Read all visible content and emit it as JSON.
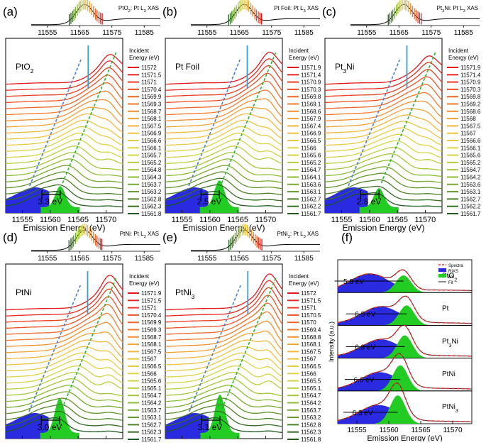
{
  "colors": {
    "top": "#e8141c",
    "bottom": "#1e5a1e",
    "ddv": "#2a2ae0",
    "es": "#22cc22",
    "loss_line": "#4a7fd1",
    "elastic_line": "#2fa0d8",
    "es_line": "#2db42d",
    "spectra": "#e03030",
    "fit": "#1a1a1a"
  },
  "chart_data": [
    {
      "type": "line",
      "panel": "(a)",
      "sample": "PtO2",
      "sample_label": "PtO₂",
      "xas_title": "PtO₂: Pt L₃ XAS",
      "xas_ticks": [
        "11555",
        "11565",
        "11575",
        "11585"
      ],
      "rixs_ticks": [
        "11555",
        "11560",
        "11565",
        "11570"
      ],
      "xlim": [
        11552,
        11573
      ],
      "xlabel": "Emission Energy (eV)",
      "legend_title": [
        "Incident",
        "Energy (eV)"
      ],
      "incident_energies": [
        "11572",
        "11571.5",
        "11571",
        "11570.4",
        "11569.9",
        "11569.3",
        "11568.7",
        "11568.1",
        "11567.5",
        "11566.9",
        "11566.6",
        "11566.1",
        "11565.7",
        "11565.2",
        "11564.8",
        "11564.3",
        "11563.7",
        "11563.2",
        "11562.8",
        "11562.3",
        "11561.8"
      ],
      "loss_annotation": "3.3 eV"
    },
    {
      "type": "line",
      "panel": "(b)",
      "sample": "Pt Foil",
      "sample_label": "Pt Foil",
      "xas_title": "Pt Foil: Pt L₃ XAS",
      "xas_ticks": [
        "11555",
        "11565",
        "11575",
        "11585"
      ],
      "rixs_ticks": [
        "11555",
        "11560",
        "11565",
        "11570"
      ],
      "xlim": [
        11552,
        11573
      ],
      "xlabel": "Emission Energy (eV)",
      "legend_title": [
        "Incident",
        "Energy (eV)"
      ],
      "incident_energies": [
        "11571.9",
        "11571.4",
        "11570.9",
        "11570.3",
        "11569.8",
        "11569.1",
        "11568.6",
        "11567.9",
        "11567.4",
        "11566.9",
        "11566.5",
        "11566",
        "11565.6",
        "11565.2",
        "11564.7",
        "11564.1",
        "11563.6",
        "11563.1",
        "11562.7",
        "11562.2",
        "11561.7"
      ],
      "loss_annotation": "2.5 eV"
    },
    {
      "type": "line",
      "panel": "(c)",
      "sample": "Pt3Ni",
      "sample_label": "Pt₃Ni",
      "xas_title": "Pt₃Ni: Pt L₃ XAS",
      "xas_ticks": [
        "11555",
        "11565",
        "11575",
        "11585"
      ],
      "rixs_ticks": [
        "11555",
        "11560",
        "11565",
        "11570"
      ],
      "xlim": [
        11552,
        11573
      ],
      "xlabel": "Emission Energy (eV)",
      "legend_title": [
        "Incident",
        "Energy (eV)"
      ],
      "incident_energies": [
        "11571.9",
        "11571.4",
        "11570.9",
        "11570.3",
        "11569.8",
        "11569.2",
        "11568.6",
        "11568",
        "11567.5",
        "11567",
        "11566.6",
        "11566.1",
        "11565.6",
        "11565.2",
        "11564.7",
        "11564.2",
        "11563.6",
        "11563.1",
        "11562.7",
        "11562.2",
        "11561.7"
      ],
      "loss_annotation": "2.8 eV"
    },
    {
      "type": "line",
      "panel": "(d)",
      "sample": "PtNi",
      "sample_label": "PtNi",
      "xas_title": "PtNi: Pt L₃ XAS",
      "xas_ticks": [
        "11555",
        "11565",
        "11575",
        "11585"
      ],
      "rixs_ticks": [
        "11555",
        "11560",
        "11565",
        "11570"
      ],
      "xlim": [
        11552,
        11573
      ],
      "xlabel": "Emission Energy (eV)",
      "legend_title": [
        "Incident",
        "Energy (eV)"
      ],
      "incident_energies": [
        "11571.9",
        "11571.5",
        "11571",
        "11570.4",
        "11569.9",
        "11569.3",
        "11568.7",
        "11568.1",
        "11567.5",
        "11567",
        "11566.5",
        "11566",
        "11565.6",
        "11565.1",
        "11564.7",
        "11564.2",
        "11563.7",
        "11563.1",
        "11562.7",
        "11562.3",
        "11561.7"
      ],
      "loss_annotation": "3.0 eV"
    },
    {
      "type": "line",
      "panel": "(e)",
      "sample": "PtNi3",
      "sample_label": "PtNi₃",
      "xas_title": "PtNi₃: Pt L₃ XAS",
      "xas_ticks": [
        "11555",
        "11565",
        "11575",
        "11585"
      ],
      "rixs_ticks": [
        "11555",
        "11560",
        "11565",
        "11570"
      ],
      "xlim": [
        11552,
        11573
      ],
      "xlabel": "Emission Energy (eV)",
      "legend_title": [
        "Incident",
        "Energy (eV)"
      ],
      "incident_energies": [
        "11572",
        "11571.5",
        "11571",
        "11570.5",
        "11570",
        "11569.4",
        "11568.8",
        "11568.1",
        "11567.5",
        "11567",
        "11566.5",
        "11566",
        "11565.5",
        "11565.1",
        "11564.7",
        "11564.2",
        "11563.7",
        "11563.2",
        "11562.8",
        "11562.3",
        "11561.8"
      ],
      "loss_annotation": "3.1 eV"
    },
    {
      "type": "area",
      "panel": "(f)",
      "xlabel": "Emission Energy (eV)",
      "ylabel": "Intensity (a.u.)",
      "ticks": [
        "11555",
        "11560",
        "11565",
        "11570"
      ],
      "xlim": [
        11552,
        11573
      ],
      "legend": [
        "Spectra",
        "RIXS",
        "ES",
        "Fit"
      ],
      "rows": [
        {
          "label": "PtO₂",
          "loss": "5.8 eV",
          "rixs_center": 11557.0,
          "es_center": 11562.3
        },
        {
          "label": "Pt",
          "loss": "6.5 eV",
          "rixs_center": 11558.8,
          "es_center": 11562.8
        },
        {
          "label": "Pt₃Ni",
          "loss": "6.8 eV",
          "rixs_center": 11558.8,
          "es_center": 11562.5
        },
        {
          "label": "PtNi",
          "loss": "6.6 eV",
          "rixs_center": 11558.6,
          "es_center": 11561.8
        },
        {
          "label": "PtNi₃",
          "loss": "6.3 eV",
          "rixs_center": 11558.4,
          "es_center": 11561.4
        }
      ]
    }
  ]
}
